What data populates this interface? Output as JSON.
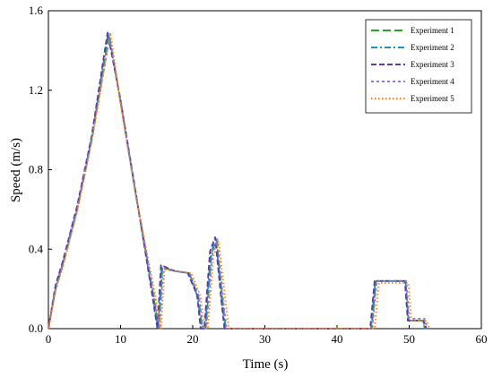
{
  "chart_data": {
    "type": "line",
    "xlabel": "Time (s)",
    "ylabel": "Speed (m/s)",
    "xlim": [
      0,
      60
    ],
    "ylim": [
      0,
      1.6
    ],
    "xticks": [
      0,
      10,
      20,
      30,
      40,
      50,
      60
    ],
    "yticks": [
      0.0,
      0.4,
      0.8,
      1.2,
      1.6
    ],
    "xtick_labels": [
      "0",
      "10",
      "20",
      "30",
      "40",
      "50",
      "60"
    ],
    "ytick_labels": [
      "0.0",
      "0.4",
      "0.8",
      "1.2",
      "1.6"
    ],
    "grid": false,
    "legend_position": "top-right",
    "series": [
      {
        "name": "Experiment 1",
        "color": "#2ca02c",
        "dash": "long-dash",
        "x": [
          0,
          1,
          2,
          4,
          6,
          8.4,
          10,
          12,
          14.5,
          15.3,
          15.8,
          17.5,
          19.5,
          20.8,
          21.3,
          21.8,
          22.6,
          23.3,
          24.2,
          24.6,
          44.8,
          45.4,
          49.5,
          49.9,
          51.8,
          52.2
        ],
        "y": [
          0.0,
          0.2,
          0.32,
          0.6,
          0.95,
          1.48,
          1.14,
          0.7,
          0.18,
          0.0,
          0.31,
          0.29,
          0.28,
          0.16,
          0.0,
          0.0,
          0.38,
          0.45,
          0.12,
          0.0,
          0.0,
          0.24,
          0.24,
          0.04,
          0.04,
          0.0
        ]
      },
      {
        "name": "Experiment 2",
        "color": "#1f8fc0",
        "dash": "dash-dot",
        "x": [
          0,
          1,
          2,
          4,
          6,
          8.3,
          10,
          12,
          14.4,
          15.2,
          15.7,
          17.5,
          19.4,
          20.7,
          21.2,
          21.7,
          22.5,
          23.2,
          24.1,
          24.5,
          44.7,
          45.3,
          49.5,
          49.9,
          51.9,
          52.3
        ],
        "y": [
          0.0,
          0.21,
          0.33,
          0.61,
          0.96,
          1.49,
          1.15,
          0.7,
          0.18,
          0.0,
          0.31,
          0.29,
          0.28,
          0.16,
          0.0,
          0.0,
          0.38,
          0.45,
          0.12,
          0.0,
          0.0,
          0.24,
          0.24,
          0.04,
          0.04,
          0.0
        ]
      },
      {
        "name": "Experiment 3",
        "color": "#5b3aa8",
        "dash": "dash",
        "x": [
          0,
          1,
          2,
          4,
          6,
          8.2,
          10,
          12,
          14.3,
          15.1,
          15.6,
          17.5,
          19.3,
          20.6,
          21.1,
          21.6,
          22.4,
          23.1,
          24.0,
          24.4,
          44.6,
          45.2,
          49.4,
          49.8,
          52.0,
          52.4
        ],
        "y": [
          0.0,
          0.22,
          0.34,
          0.62,
          0.97,
          1.49,
          1.15,
          0.71,
          0.19,
          0.0,
          0.32,
          0.29,
          0.28,
          0.17,
          0.0,
          0.0,
          0.39,
          0.46,
          0.13,
          0.0,
          0.0,
          0.24,
          0.24,
          0.04,
          0.04,
          0.0
        ]
      },
      {
        "name": "Experiment 4",
        "color": "#8c7cc4",
        "dash": "short-dash",
        "x": [
          0,
          1,
          2,
          4,
          6,
          8.5,
          10,
          12,
          14.6,
          15.4,
          15.9,
          17.5,
          19.6,
          20.9,
          21.4,
          21.9,
          22.7,
          23.4,
          24.3,
          24.7,
          44.9,
          45.5,
          49.6,
          50.0,
          52.1,
          52.5
        ],
        "y": [
          0.0,
          0.2,
          0.32,
          0.6,
          0.95,
          1.47,
          1.14,
          0.7,
          0.18,
          0.0,
          0.3,
          0.29,
          0.28,
          0.16,
          0.0,
          0.0,
          0.37,
          0.45,
          0.12,
          0.0,
          0.0,
          0.24,
          0.24,
          0.05,
          0.05,
          0.0
        ]
      },
      {
        "name": "Experiment 5",
        "color": "#ff7f0e",
        "dash": "dot",
        "x": [
          0,
          1,
          2,
          4,
          6,
          8.6,
          10,
          12,
          14.8,
          15.6,
          16.1,
          17.5,
          19.8,
          21.1,
          21.6,
          22.1,
          22.9,
          23.6,
          24.6,
          25.0,
          45.2,
          45.8,
          49.9,
          50.3,
          52.4,
          52.8
        ],
        "y": [
          0.0,
          0.19,
          0.31,
          0.59,
          0.94,
          1.49,
          1.13,
          0.69,
          0.17,
          0.0,
          0.3,
          0.29,
          0.28,
          0.16,
          0.0,
          0.0,
          0.37,
          0.44,
          0.12,
          0.0,
          0.0,
          0.23,
          0.23,
          0.04,
          0.04,
          0.0
        ]
      }
    ]
  }
}
